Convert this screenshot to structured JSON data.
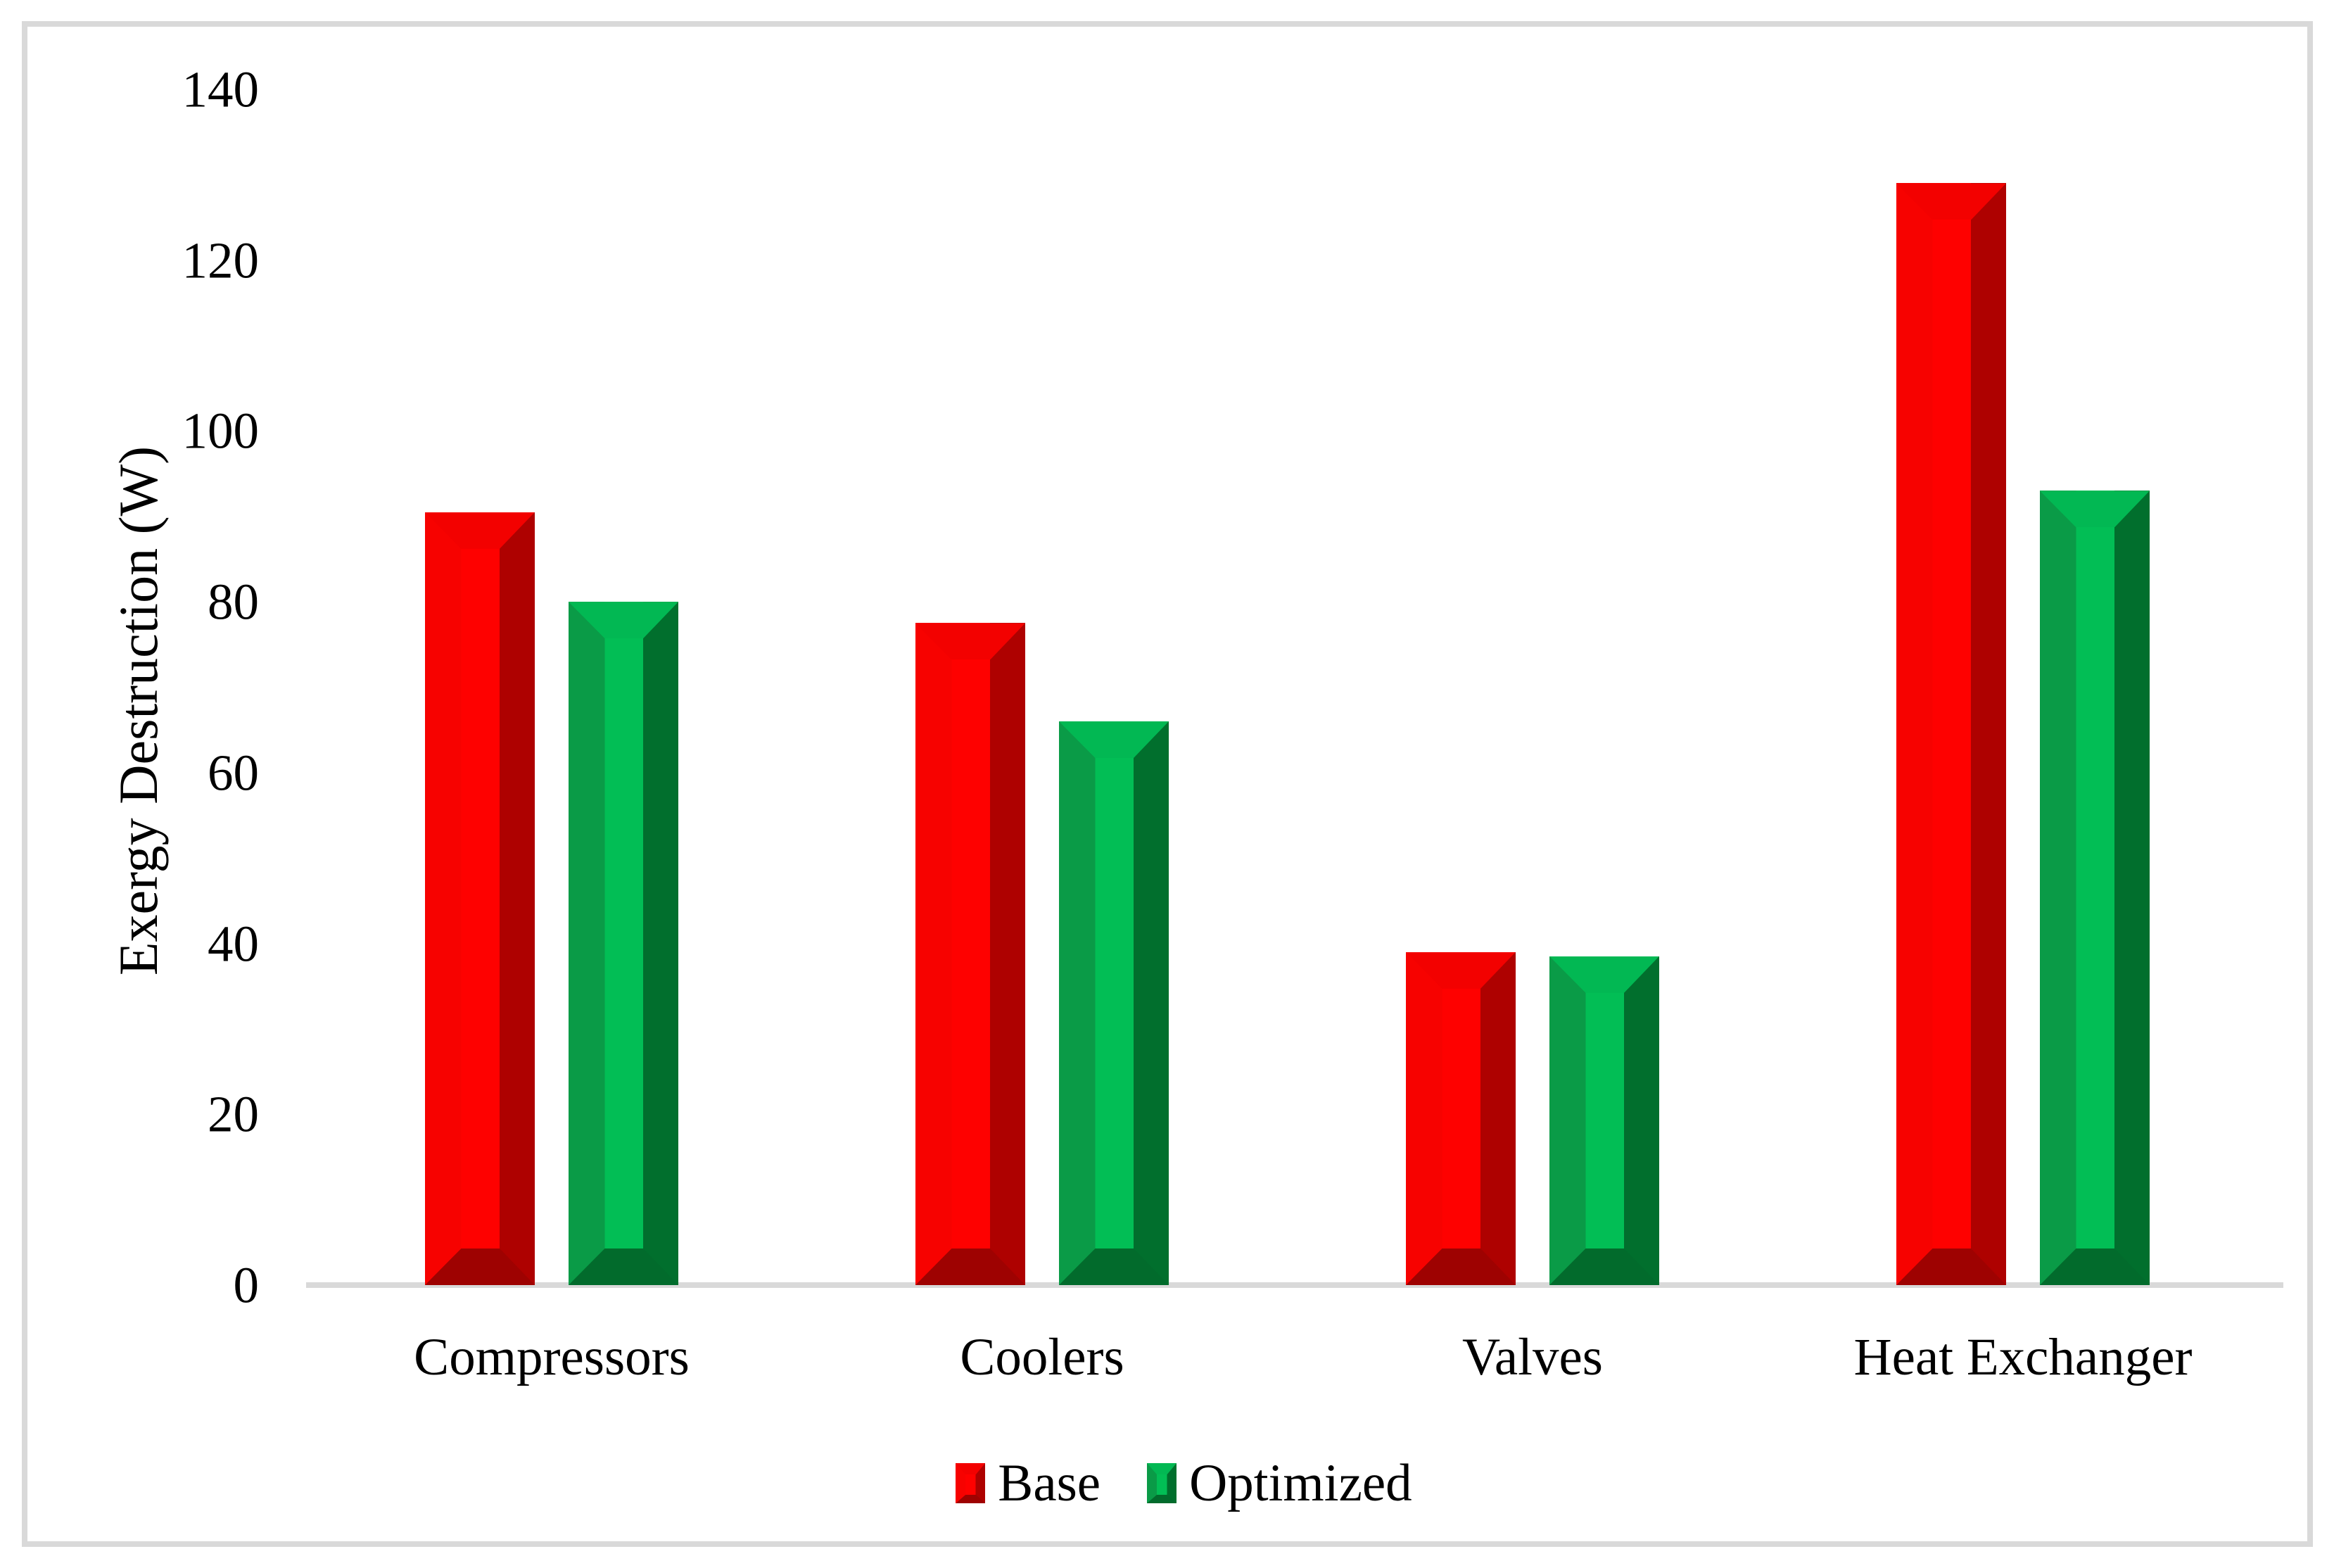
{
  "chart_data": {
    "type": "bar",
    "title": "",
    "categories": [
      "Compressors",
      "Coolers",
      "Valves",
      "Heat Exchanger"
    ],
    "series": [
      {
        "name": "Base",
        "values": [
          90.5,
          77.5,
          39,
          129
        ],
        "colors": {
          "face": "#fe0100",
          "bevel_left": "#f70200",
          "side": "#ae0100",
          "top_face": "#f30100",
          "bottom_face": "#9e0201"
        }
      },
      {
        "name": "Optimized",
        "values": [
          80,
          66,
          38.5,
          93
        ],
        "colors": {
          "face": "#02be55",
          "bevel_left": "#0a9b47",
          "side": "#016f2d",
          "top_face": "#02b853",
          "bottom_face": "#026b2c"
        }
      }
    ],
    "xlabel": "",
    "ylabel": "Exergy Destruction (W)",
    "ylim": [
      0,
      140
    ],
    "yticks": [
      0,
      20,
      40,
      60,
      80,
      100,
      120,
      140
    ],
    "grid": false,
    "legend_position": "bottom",
    "axis_color": "#d9d9d9",
    "frame_color": "#d9d9d9",
    "text_color": "#000000",
    "background_color": "#ffffff"
  }
}
